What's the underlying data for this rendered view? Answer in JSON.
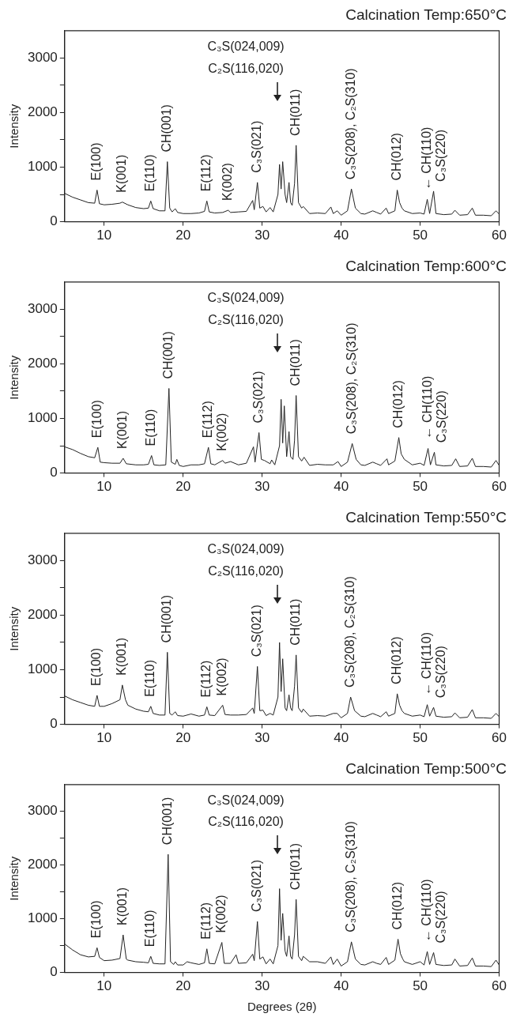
{
  "chart_data": [
    {
      "type": "line",
      "title": "Calcination Temp:650°C",
      "ylabel": "Intensity",
      "xlim": [
        5,
        60
      ],
      "xticks": [
        10,
        20,
        30,
        40,
        50,
        60
      ],
      "ylim": [
        0,
        3500
      ],
      "yticks": [
        0,
        {
          "value": 500,
          "label": null
        },
        1000,
        {
          "value": 1500,
          "label": null
        },
        2000,
        {
          "value": 2500,
          "label": null
        },
        3000
      ],
      "marker": "none",
      "x": [
        5,
        6,
        7,
        8,
        8.8,
        9.1,
        9.4,
        10,
        11,
        12,
        12.3,
        13,
        14,
        15,
        15.6,
        15.9,
        16.2,
        17,
        17.7,
        18.0,
        18.3,
        18.6,
        19,
        19.3,
        20,
        21,
        22,
        22.7,
        23.0,
        23.3,
        24,
        25,
        25.7,
        26,
        27,
        28,
        28.8,
        29.0,
        29.4,
        29.7,
        30.1,
        30.5,
        31,
        31.4,
        32.0,
        32.2,
        32.4,
        32.6,
        32.9,
        33.1,
        33.4,
        33.6,
        33.8,
        34.1,
        34.3,
        34.6,
        35,
        35.2,
        36,
        37,
        38,
        38.7,
        39,
        39.5,
        40,
        40.8,
        41.3,
        41.8,
        42.5,
        43,
        44,
        44.5,
        45,
        45.7,
        46,
        46.8,
        47.1,
        47.4,
        47.7,
        48,
        49,
        50,
        50.5,
        50.9,
        51.2,
        51.7,
        52,
        53,
        54,
        54.4,
        55,
        56,
        56.6,
        57,
        58,
        59,
        59.6,
        60
      ],
      "series": [
        {
          "color": "#222222",
          "values": [
            520,
            450,
            400,
            350,
            340,
            580,
            330,
            310,
            320,
            340,
            360,
            310,
            260,
            240,
            250,
            380,
            240,
            200,
            200,
            1100,
            250,
            180,
            240,
            170,
            150,
            150,
            160,
            190,
            380,
            180,
            160,
            170,
            210,
            170,
            180,
            190,
            390,
            220,
            720,
            250,
            280,
            180,
            260,
            180,
            500,
            1050,
            600,
            1100,
            500,
            350,
            720,
            350,
            300,
            700,
            1400,
            350,
            250,
            280,
            150,
            160,
            150,
            270,
            150,
            200,
            120,
            200,
            600,
            250,
            150,
            140,
            200,
            170,
            140,
            250,
            150,
            200,
            580,
            350,
            250,
            200,
            150,
            160,
            140,
            410,
            150,
            560,
            150,
            130,
            140,
            210,
            120,
            130,
            250,
            120,
            120,
            110,
            200,
            140
          ]
        }
      ],
      "annotations": [
        "C₃S(024,009)",
        "C₂S(116,020)",
        {
          "text": "E(100)",
          "x": 9.1,
          "y": 580
        },
        {
          "text": "K(001)",
          "x": 12.3,
          "y": 360
        },
        {
          "text": "E(110)",
          "x": 15.9,
          "y": 380
        },
        {
          "text": "CH(001)",
          "x": 18.0,
          "y": 1100
        },
        {
          "text": "E(112)",
          "x": 23.0,
          "y": 380
        },
        {
          "text": "K(002)",
          "x": 25.7,
          "y": 210
        },
        {
          "text": "C₃S(021)",
          "x": 29.4,
          "y": 720
        },
        {
          "text": "CH(011)",
          "x": 34.3,
          "y": 1400
        },
        {
          "text": "C₃S(208), C₂S(310)",
          "x": 41.3,
          "y": 600
        },
        {
          "text": "CH(012)",
          "x": 47.1,
          "y": 580
        },
        {
          "text": "← CH(110)",
          "x": 50.9,
          "y": 410
        },
        {
          "text": "C₃S(220)",
          "x": 51.7,
          "y": 560
        }
      ]
    },
    {
      "type": "line",
      "title": "Calcination Temp:600°C",
      "ylabel": "Intensity",
      "xlim": [
        5,
        60
      ],
      "xticks": [
        10,
        20,
        30,
        40,
        50,
        60
      ],
      "ylim": [
        0,
        3500
      ],
      "yticks": [
        0,
        {
          "value": 500,
          "label": null
        },
        1000,
        {
          "value": 1500,
          "label": null
        },
        2000,
        {
          "value": 2500,
          "label": null
        },
        3000
      ],
      "marker": "none",
      "x": [
        5,
        6,
        7,
        8,
        8.8,
        9.2,
        9.5,
        10,
        11,
        12,
        12.4,
        12.8,
        14,
        15,
        15.6,
        16.0,
        16.3,
        17,
        17.8,
        18.2,
        18.5,
        19,
        19.2,
        19.5,
        20,
        21,
        22,
        22.7,
        23.2,
        23.5,
        24,
        25,
        25.3,
        26,
        27,
        28,
        28.9,
        29.1,
        29.6,
        29.9,
        30.3,
        31,
        31.2,
        31.6,
        32.2,
        32.4,
        32.6,
        32.8,
        33.1,
        33.4,
        33.6,
        33.9,
        34.1,
        34.3,
        34.6,
        35,
        35.3,
        36,
        37,
        38,
        39,
        39.6,
        40,
        40.8,
        41.4,
        41.9,
        42.5,
        43,
        44,
        44.5,
        45,
        45.8,
        46,
        46.8,
        47.3,
        47.6,
        48,
        49,
        50,
        50.5,
        51,
        51.3,
        51.8,
        52,
        53,
        54,
        54.5,
        55,
        56,
        56.6,
        57,
        58,
        59,
        59.6,
        60
      ],
      "series": [
        {
          "color": "#222222",
          "values": [
            480,
            430,
            360,
            300,
            280,
            470,
            200,
            190,
            180,
            180,
            270,
            170,
            150,
            150,
            160,
            320,
            150,
            140,
            150,
            1550,
            200,
            160,
            250,
            140,
            120,
            150,
            150,
            170,
            470,
            170,
            150,
            230,
            180,
            210,
            150,
            180,
            480,
            200,
            740,
            250,
            230,
            170,
            240,
            150,
            500,
            1350,
            550,
            1230,
            300,
            760,
            300,
            250,
            600,
            1420,
            300,
            220,
            290,
            140,
            160,
            150,
            150,
            210,
            120,
            200,
            540,
            250,
            150,
            140,
            200,
            170,
            140,
            260,
            150,
            220,
            650,
            350,
            250,
            150,
            180,
            140,
            450,
            150,
            380,
            150,
            130,
            140,
            260,
            120,
            130,
            270,
            120,
            120,
            110,
            230,
            140
          ]
        }
      ],
      "annotations": [
        "C₃S(024,009)",
        "C₂S(116,020)",
        {
          "text": "E(100)",
          "x": 9.2,
          "y": 470
        },
        {
          "text": "K(001)",
          "x": 12.4,
          "y": 270
        },
        {
          "text": "E(110)",
          "x": 16.0,
          "y": 320
        },
        {
          "text": "CH(001)",
          "x": 18.2,
          "y": 1550
        },
        {
          "text": "E(112)",
          "x": 23.2,
          "y": 470
        },
        {
          "text": "K(002)",
          "x": 25,
          "y": 230
        },
        {
          "text": "C₃S(021)",
          "x": 29.6,
          "y": 740
        },
        {
          "text": "CH(011)",
          "x": 34.3,
          "y": 1420
        },
        {
          "text": "C₃S(208), C₂S(310)",
          "x": 41.4,
          "y": 540
        },
        {
          "text": "CH(012)",
          "x": 47.3,
          "y": 650
        },
        {
          "text": "← CH(110)",
          "x": 51,
          "y": 450
        },
        {
          "text": "C₃S(220)",
          "x": 51.8,
          "y": 380
        }
      ]
    },
    {
      "type": "line",
      "title": "Calcination Temp:550°C",
      "ylabel": "Intensity",
      "xlim": [
        5,
        60
      ],
      "xticks": [
        10,
        20,
        30,
        40,
        50,
        60
      ],
      "ylim": [
        0,
        3500
      ],
      "yticks": [
        0,
        {
          "value": 500,
          "label": null
        },
        1000,
        {
          "value": 1500,
          "label": null
        },
        2000,
        {
          "value": 2500,
          "label": null
        },
        3000
      ],
      "marker": "none",
      "x": [
        5,
        6,
        7,
        8,
        8.8,
        9.1,
        9.4,
        10,
        11,
        12,
        12.3,
        12.7,
        13,
        14,
        15,
        15.6,
        15.9,
        16.2,
        17,
        17.7,
        18.0,
        18.3,
        18.6,
        19,
        19.3,
        20,
        21,
        22,
        22.7,
        23.0,
        23.3,
        24,
        25,
        25.3,
        26,
        27,
        28,
        28.8,
        29.0,
        29.4,
        29.7,
        30.1,
        30.5,
        31,
        31.4,
        32.0,
        32.2,
        32.4,
        32.6,
        32.9,
        33.1,
        33.4,
        33.6,
        33.8,
        34.1,
        34.3,
        34.6,
        35,
        35.2,
        36,
        37,
        38,
        39,
        39.5,
        40,
        40.8,
        41.2,
        41.7,
        42.5,
        43,
        44,
        44.5,
        45,
        45.7,
        46,
        46.8,
        47.1,
        47.4,
        47.7,
        48,
        49,
        50,
        50.5,
        50.9,
        51.2,
        51.7,
        52,
        53,
        54,
        54.4,
        55,
        56,
        56.6,
        57,
        58,
        59,
        59.6,
        60
      ],
      "series": [
        {
          "color": "#222222",
          "values": [
            520,
            450,
            400,
            350,
            330,
            530,
            330,
            330,
            380,
            450,
            720,
            450,
            350,
            280,
            240,
            230,
            330,
            200,
            170,
            170,
            1320,
            200,
            170,
            230,
            160,
            150,
            190,
            150,
            170,
            320,
            170,
            160,
            350,
            180,
            170,
            170,
            180,
            300,
            200,
            1060,
            250,
            260,
            160,
            200,
            170,
            500,
            1500,
            600,
            1200,
            300,
            250,
            540,
            300,
            250,
            700,
            1270,
            300,
            220,
            280,
            150,
            160,
            150,
            200,
            200,
            120,
            200,
            500,
            250,
            150,
            140,
            200,
            170,
            140,
            230,
            150,
            200,
            560,
            350,
            250,
            200,
            150,
            170,
            140,
            360,
            150,
            310,
            150,
            130,
            140,
            210,
            120,
            130,
            270,
            120,
            120,
            110,
            200,
            140
          ]
        }
      ],
      "annotations": [
        "C₃S(024,009)",
        "C₂S(116,020)",
        {
          "text": "E(100)",
          "x": 9.1,
          "y": 530
        },
        {
          "text": "K(001)",
          "x": 12.3,
          "y": 720
        },
        {
          "text": "E(110)",
          "x": 15.9,
          "y": 330
        },
        {
          "text": "CH(001)",
          "x": 18.0,
          "y": 1320
        },
        {
          "text": "E(112)",
          "x": 23.0,
          "y": 320
        },
        {
          "text": "K(002)",
          "x": 25,
          "y": 350
        },
        {
          "text": "C₃S(021)",
          "x": 29.4,
          "y": 1060
        },
        {
          "text": "CH(011)",
          "x": 34.3,
          "y": 1270
        },
        {
          "text": "C₃S(208), C₂S(310)",
          "x": 41.2,
          "y": 500
        },
        {
          "text": "CH(012)",
          "x": 47.1,
          "y": 560
        },
        {
          "text": "← CH(110)",
          "x": 50.9,
          "y": 360
        },
        {
          "text": "C₃S(220)",
          "x": 51.7,
          "y": 310
        }
      ]
    },
    {
      "type": "line",
      "title": "Calcination Temp:500°C",
      "xlabel": "Degrees (2θ)",
      "ylabel": "Intensity",
      "xlim": [
        5,
        60
      ],
      "xticks": [
        10,
        20,
        30,
        40,
        50,
        60
      ],
      "ylim": [
        0,
        3500
      ],
      "yticks": [
        0,
        {
          "value": 500,
          "label": null
        },
        1000,
        {
          "value": 1500,
          "label": null
        },
        2000,
        {
          "value": 2500,
          "label": null
        },
        3000
      ],
      "marker": "none",
      "x": [
        5,
        6,
        7,
        8,
        8.8,
        9.1,
        9.4,
        10,
        11,
        12,
        12.4,
        12.8,
        13,
        14,
        15,
        15.6,
        15.9,
        16.2,
        17,
        17.7,
        18.1,
        18.4,
        18.8,
        19,
        19.3,
        20,
        20.5,
        21,
        22,
        22.7,
        23.0,
        23.3,
        24,
        24.9,
        25.2,
        26,
        26.7,
        27,
        28,
        28.8,
        29.0,
        29.4,
        29.7,
        30.1,
        30.5,
        31,
        31.4,
        32.0,
        32.2,
        32.4,
        32.6,
        32.9,
        33.1,
        33.4,
        33.6,
        33.8,
        34.1,
        34.3,
        34.6,
        35,
        35.2,
        36,
        37,
        38,
        38.7,
        39,
        39.5,
        40,
        40.8,
        41.3,
        41.8,
        42.5,
        43,
        44,
        44.5,
        45,
        45.7,
        46,
        46.8,
        47.2,
        47.5,
        47.8,
        48,
        49,
        50,
        50.5,
        50.9,
        51.2,
        51.7,
        52,
        53,
        54,
        54.4,
        55,
        56,
        56.6,
        57,
        58,
        59,
        59.6,
        60
      ],
      "series": [
        {
          "color": "#222222",
          "values": [
            530,
            420,
            330,
            290,
            300,
            460,
            280,
            220,
            230,
            260,
            700,
            250,
            230,
            200,
            190,
            180,
            300,
            170,
            160,
            160,
            2200,
            200,
            150,
            200,
            140,
            140,
            200,
            180,
            150,
            180,
            440,
            170,
            160,
            560,
            170,
            170,
            330,
            170,
            180,
            340,
            220,
            950,
            250,
            290,
            160,
            250,
            160,
            500,
            1560,
            600,
            1100,
            400,
            300,
            680,
            300,
            250,
            700,
            1360,
            300,
            220,
            300,
            200,
            200,
            170,
            290,
            150,
            250,
            120,
            200,
            570,
            250,
            150,
            140,
            200,
            170,
            150,
            280,
            150,
            230,
            620,
            350,
            250,
            200,
            150,
            200,
            140,
            390,
            150,
            370,
            150,
            130,
            140,
            250,
            120,
            130,
            270,
            120,
            120,
            110,
            230,
            140
          ]
        }
      ],
      "annotations": [
        "C₃S(024,009)",
        "C₂S(116,020)",
        {
          "text": "E(100)",
          "x": 9.1,
          "y": 460
        },
        {
          "text": "K(001)",
          "x": 12.4,
          "y": 700
        },
        {
          "text": "E(110)",
          "x": 15.9,
          "y": 300
        },
        {
          "text": "CH(001)",
          "x": 18.1,
          "y": 2200
        },
        {
          "text": "E(112)",
          "x": 23.0,
          "y": 440
        },
        {
          "text": "K(002)",
          "x": 24.9,
          "y": 560
        },
        {
          "text": "C₃S(021)",
          "x": 29.4,
          "y": 950
        },
        {
          "text": "CH(011)",
          "x": 34.3,
          "y": 1360
        },
        {
          "text": "C₃S(208), C₂S(310)",
          "x": 41.3,
          "y": 570
        },
        {
          "text": "CH(012)",
          "x": 47.2,
          "y": 620
        },
        {
          "text": "← CH(110)",
          "x": 50.9,
          "y": 390
        },
        {
          "text": "C₃S(220)",
          "x": 51.7,
          "y": 370
        }
      ]
    }
  ]
}
